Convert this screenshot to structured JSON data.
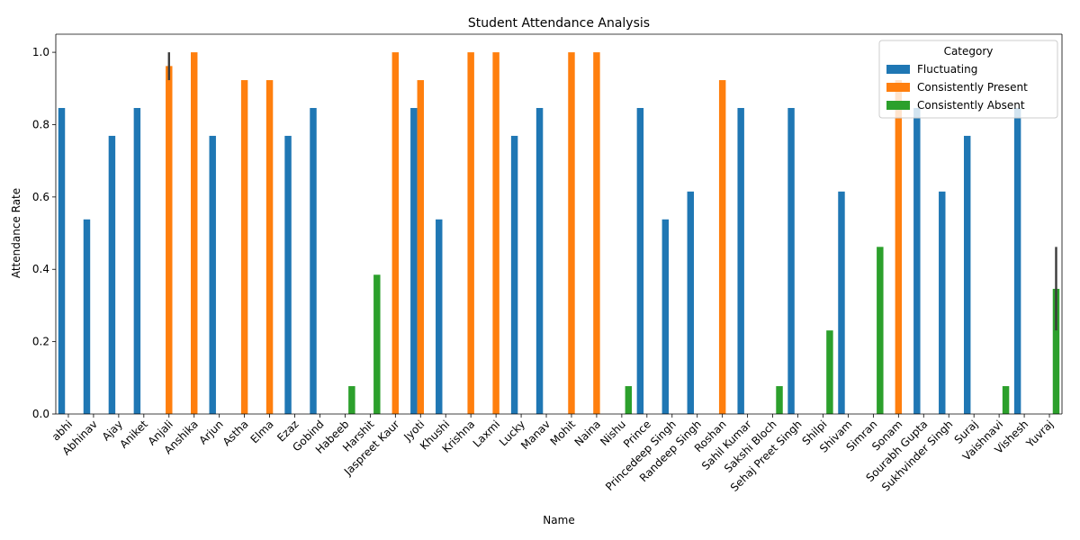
{
  "chart_data": {
    "type": "bar",
    "title": "Student Attendance Analysis",
    "xlabel": "Name",
    "ylabel": "Attendance Rate",
    "ylim": [
      0,
      1.05
    ],
    "yticks": [
      0.0,
      0.2,
      0.4,
      0.6,
      0.8,
      1.0
    ],
    "ytick_labels": [
      "0.0",
      "0.2",
      "0.4",
      "0.6",
      "0.8",
      "1.0"
    ],
    "grid": false,
    "legend": {
      "title": "Category",
      "placement": "top-right"
    },
    "categories": [
      "abhi",
      "Abhinav",
      "Ajay",
      "Aniket",
      "Anjali",
      "Anshika",
      "Arjun",
      "Astha",
      "Elma",
      "Ezaz",
      "Gobind",
      "Habeeb",
      "Harshit",
      "Jaspreet Kaur",
      "Jyoti",
      "Khushi",
      "Krishna",
      "Laxmi",
      "Lucky",
      "Manav",
      "Mohit",
      "Naina",
      "Nishu",
      "Prince",
      "Princedeep Singh",
      "Randeep Singh",
      "Roshan",
      "Sahil Kumar",
      "Sakshi Bloch",
      "Sehaj Preet Singh",
      "Shilpi",
      "Shivam",
      "Simran",
      "Sonam",
      "Sourabh Gupta",
      "Sukhvinder Singh",
      "Suraj",
      "Vaishnavi",
      "Vishesh",
      "Yuvraj"
    ],
    "series": [
      {
        "name": "Fluctuating",
        "color": "#1f77b4",
        "values": [
          0.846,
          0.538,
          0.769,
          0.846,
          null,
          null,
          0.769,
          null,
          null,
          0.769,
          0.846,
          null,
          null,
          null,
          0.846,
          0.538,
          null,
          null,
          0.769,
          0.846,
          null,
          null,
          null,
          0.846,
          0.538,
          0.615,
          null,
          0.846,
          null,
          0.846,
          null,
          0.615,
          null,
          null,
          0.846,
          0.615,
          0.769,
          null,
          0.846,
          null
        ]
      },
      {
        "name": "Consistently Present",
        "color": "#ff7f0e",
        "values": [
          null,
          null,
          null,
          null,
          0.962,
          1.0,
          null,
          0.923,
          0.923,
          null,
          null,
          null,
          null,
          1.0,
          0.923,
          null,
          1.0,
          1.0,
          null,
          null,
          1.0,
          1.0,
          null,
          null,
          null,
          null,
          0.923,
          null,
          null,
          null,
          null,
          null,
          null,
          0.923,
          null,
          null,
          null,
          null,
          null,
          null
        ]
      },
      {
        "name": "Consistently Absent",
        "color": "#2ca02c",
        "values": [
          null,
          null,
          null,
          null,
          null,
          null,
          null,
          null,
          null,
          null,
          null,
          0.077,
          0.385,
          null,
          null,
          null,
          null,
          null,
          null,
          null,
          null,
          null,
          0.077,
          null,
          null,
          null,
          null,
          null,
          0.077,
          null,
          0.231,
          null,
          0.462,
          null,
          null,
          null,
          null,
          0.077,
          null,
          0.346
        ]
      }
    ],
    "error_bars": [
      {
        "category": "Anjali",
        "series": "Consistently Present",
        "low": 0.923,
        "high": 1.0
      },
      {
        "category": "Yuvraj",
        "series": "Consistently Absent",
        "low": 0.231,
        "high": 0.462
      }
    ]
  }
}
